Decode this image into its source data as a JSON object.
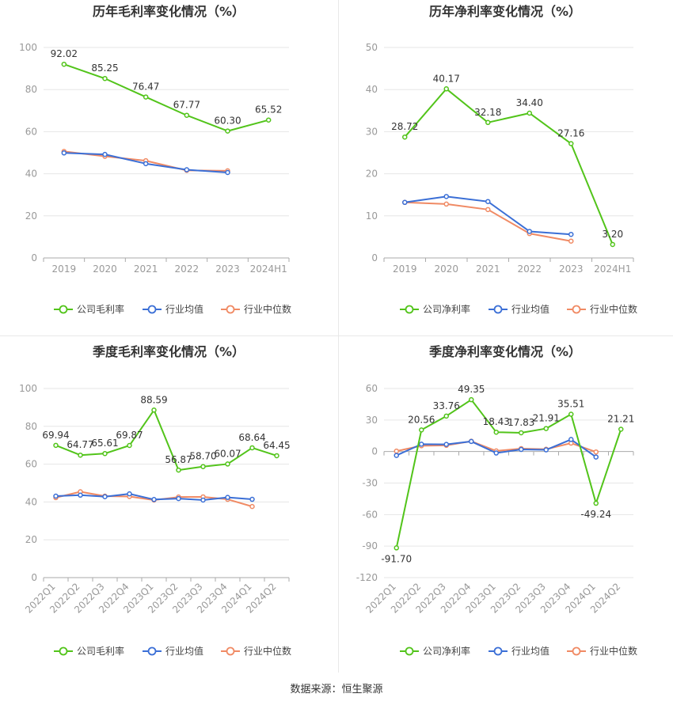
{
  "colors": {
    "company": "#52c41a",
    "avg": "#3b6fd6",
    "median": "#f08a64",
    "grid": "#e6e6e6",
    "axis": "#999999",
    "label": "#333333"
  },
  "source": "数据来源：恒生聚源",
  "chart_data": [
    {
      "type": "line",
      "title": "历年毛利率变化情况（%）",
      "categories": [
        "2019",
        "2020",
        "2021",
        "2022",
        "2023",
        "2024H1"
      ],
      "ylim": [
        0,
        100
      ],
      "yticks": [
        0,
        20,
        40,
        60,
        80,
        100
      ],
      "grid": true,
      "legend": "bottom",
      "series": [
        {
          "name": "公司毛利率",
          "values": [
            92.02,
            85.25,
            76.47,
            67.77,
            60.3,
            65.52
          ],
          "labels": [
            "92.02",
            "85.25",
            "76.47",
            "67.77",
            "60.30",
            "65.52"
          ]
        },
        {
          "name": "行业均值",
          "values": [
            49.9,
            49.2,
            44.8,
            41.9,
            40.6,
            null
          ]
        },
        {
          "name": "行业中位数",
          "values": [
            50.6,
            48.3,
            46.2,
            41.6,
            41.4,
            null
          ]
        }
      ]
    },
    {
      "type": "line",
      "title": "历年净利率变化情况（%）",
      "categories": [
        "2019",
        "2020",
        "2021",
        "2022",
        "2023",
        "2024H1"
      ],
      "ylim": [
        0,
        50
      ],
      "yticks": [
        0,
        10,
        20,
        30,
        40,
        50
      ],
      "grid": true,
      "legend": "bottom",
      "series": [
        {
          "name": "公司净利率",
          "values": [
            28.72,
            40.17,
            32.18,
            34.4,
            27.16,
            3.2
          ],
          "labels": [
            "28.72",
            "40.17",
            "32.18",
            "34.40",
            "27.16",
            "3.20"
          ]
        },
        {
          "name": "行业均值",
          "values": [
            13.2,
            14.6,
            13.4,
            6.3,
            5.6,
            null
          ]
        },
        {
          "name": "行业中位数",
          "values": [
            13.2,
            12.8,
            11.5,
            5.8,
            4.0,
            null
          ]
        }
      ]
    },
    {
      "type": "line",
      "title": "季度毛利率变化情况（%）",
      "categories": [
        "2022Q1",
        "2022Q2",
        "2022Q3",
        "2022Q4",
        "2023Q1",
        "2023Q2",
        "2023Q3",
        "2023Q4",
        "2024Q1",
        "2024Q2"
      ],
      "ylim": [
        0,
        100
      ],
      "yticks": [
        0,
        20,
        40,
        60,
        80,
        100
      ],
      "grid": true,
      "legend": "bottom",
      "series": [
        {
          "name": "公司毛利率",
          "values": [
            69.94,
            64.77,
            65.61,
            69.87,
            88.59,
            56.87,
            58.7,
            60.07,
            68.64,
            64.45
          ],
          "labels": [
            "69.94",
            "64.77",
            "65.61",
            "69.87",
            "88.59",
            "56.87",
            "58.70",
            "60.07",
            "68.64",
            "64.45"
          ]
        },
        {
          "name": "行业均值",
          "values": [
            43.1,
            43.6,
            42.8,
            44.3,
            41.3,
            41.8,
            41.0,
            42.4,
            41.4,
            null
          ]
        },
        {
          "name": "行业中位数",
          "values": [
            42.3,
            45.4,
            43.1,
            42.9,
            41.0,
            42.6,
            42.7,
            41.4,
            37.6,
            null
          ]
        }
      ]
    },
    {
      "type": "line",
      "title": "季度净利率变化情况（%）",
      "categories": [
        "2022Q1",
        "2022Q2",
        "2022Q3",
        "2022Q4",
        "2023Q1",
        "2023Q2",
        "2023Q3",
        "2023Q4",
        "2024Q1",
        "2024Q2"
      ],
      "ylim": [
        -120,
        60
      ],
      "yticks": [
        -120,
        -90,
        -60,
        -30,
        0,
        30,
        60
      ],
      "grid": true,
      "legend": "bottom",
      "series": [
        {
          "name": "公司净利率",
          "values": [
            -91.7,
            20.56,
            33.76,
            49.35,
            18.43,
            17.83,
            21.91,
            35.51,
            -49.24,
            21.21
          ],
          "labels": [
            "-91.70",
            "20.56",
            "33.76",
            "49.35",
            "18.43",
            "17.83",
            "21.91",
            "35.51",
            "-49.24",
            "21.21"
          ]
        },
        {
          "name": "行业均值",
          "values": [
            -3.7,
            7.0,
            6.8,
            9.6,
            -1.4,
            2.0,
            1.6,
            11.5,
            -5.2,
            null
          ]
        },
        {
          "name": "行业中位数",
          "values": [
            0.4,
            5.5,
            5.9,
            9.8,
            0.6,
            2.8,
            2.2,
            8.0,
            -0.4,
            null
          ]
        }
      ]
    }
  ]
}
